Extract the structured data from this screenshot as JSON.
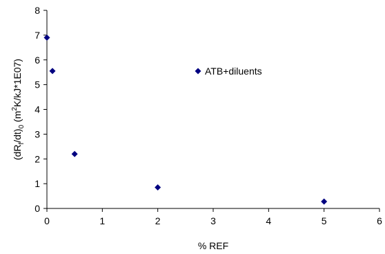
{
  "chart_data": {
    "type": "scatter",
    "xlabel": "% REF",
    "ylabel": {
      "prefix": "(dR",
      "sub1": "f",
      "mid1": "/dt)",
      "sub2": "0",
      "mid2": " (m",
      "sup": "2",
      "suffix": "K/kJ*1E07)"
    },
    "xlim": [
      0,
      6
    ],
    "ylim": [
      0,
      8
    ],
    "xticks": [
      "0",
      "1",
      "2",
      "3",
      "4",
      "5",
      "6"
    ],
    "yticks": [
      "0",
      "1",
      "2",
      "3",
      "4",
      "5",
      "6",
      "7",
      "8"
    ],
    "grid": false,
    "legend_position": "inside, upper-middle",
    "series": [
      {
        "name": "ATB+diluents",
        "color": "#000080",
        "marker": "diamond",
        "x": [
          0,
          0.1,
          0.5,
          2,
          5
        ],
        "y": [
          6.9,
          5.55,
          2.2,
          0.85,
          0.28
        ]
      }
    ]
  }
}
